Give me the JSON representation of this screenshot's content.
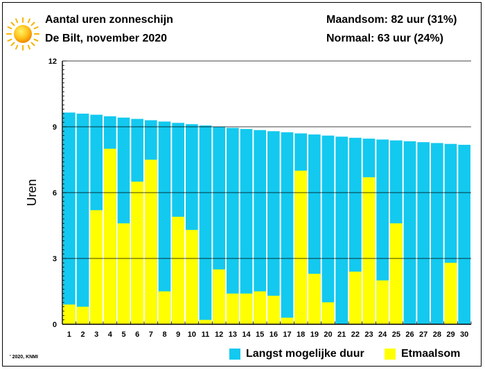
{
  "header": {
    "title": "Aantal uren zonneschijn",
    "subtitle": "De Bilt, november 2020",
    "stat_month": "Maandsom: 82 uur (31%)",
    "stat_normal": "Normaal: 63 uur (24%)"
  },
  "icons": {
    "sun": "sun-icon"
  },
  "copyright": "' 2020, KNMI",
  "colors": {
    "max_duration": "#13c9ef",
    "daily_sum": "#ffff00",
    "gridline": "#000000"
  },
  "chart_data": {
    "type": "bar",
    "xlabel": "",
    "ylabel": "Uren",
    "ylim": [
      0,
      12
    ],
    "yticks": [
      0,
      3,
      6,
      9,
      12
    ],
    "grid": true,
    "legend_position": "bottom-right",
    "categories": [
      "1",
      "2",
      "3",
      "4",
      "5",
      "6",
      "7",
      "8",
      "9",
      "10",
      "11",
      "12",
      "13",
      "14",
      "15",
      "16",
      "17",
      "18",
      "19",
      "20",
      "21",
      "22",
      "23",
      "24",
      "25",
      "26",
      "27",
      "28",
      "29",
      "30"
    ],
    "series": [
      {
        "name": "Langst mogelijke duur",
        "color": "#13c9ef",
        "values": [
          9.65,
          9.6,
          9.55,
          9.48,
          9.42,
          9.36,
          9.3,
          9.24,
          9.18,
          9.12,
          9.06,
          9.0,
          8.95,
          8.9,
          8.85,
          8.8,
          8.75,
          8.7,
          8.65,
          8.6,
          8.55,
          8.5,
          8.46,
          8.42,
          8.38,
          8.34,
          8.3,
          8.26,
          8.22,
          8.18
        ]
      },
      {
        "name": "Etmaalsom",
        "color": "#ffff00",
        "values": [
          0.9,
          0.8,
          5.2,
          8.0,
          4.6,
          6.5,
          7.5,
          1.5,
          4.9,
          4.3,
          0.2,
          2.5,
          1.4,
          1.4,
          1.5,
          1.3,
          0.3,
          7.0,
          2.3,
          1.0,
          0.0,
          2.4,
          6.7,
          2.0,
          4.6,
          0.0,
          0.0,
          0.0,
          2.8,
          0.0
        ]
      }
    ]
  }
}
